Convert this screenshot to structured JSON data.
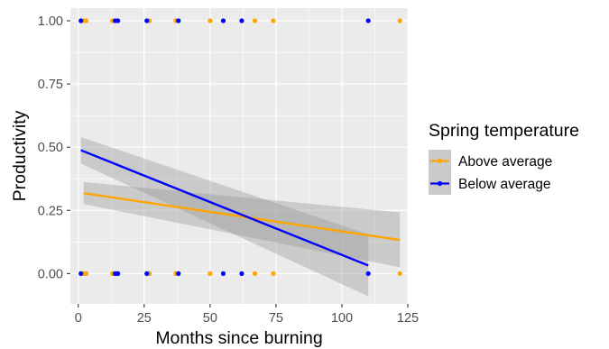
{
  "chart_data": {
    "type": "scatter",
    "title": "",
    "xlabel": "Months since burning",
    "ylabel": "Productivity",
    "xlim": [
      -3,
      125
    ],
    "ylim": [
      -0.12,
      1.05
    ],
    "x_ticks": [
      0,
      25,
      50,
      75,
      100,
      125
    ],
    "y_ticks": [
      0.0,
      0.25,
      0.5,
      0.75,
      1.0
    ],
    "x_tick_labels": [
      "0",
      "25",
      "50",
      "75",
      "100",
      "125"
    ],
    "y_tick_labels": [
      "0.00",
      "0.25",
      "0.50",
      "0.75",
      "1.00"
    ],
    "grid": true,
    "legend": {
      "title": "Spring temperature",
      "position": "right"
    },
    "series": [
      {
        "name": "Above average",
        "color": "#FFA500",
        "points": [
          [
            2,
            1
          ],
          [
            3,
            1
          ],
          [
            13,
            1
          ],
          [
            15,
            1
          ],
          [
            27,
            1
          ],
          [
            37,
            1
          ],
          [
            50,
            1
          ],
          [
            67,
            1
          ],
          [
            74,
            1
          ],
          [
            122,
            1
          ],
          [
            2,
            0
          ],
          [
            3,
            0
          ],
          [
            13,
            0
          ],
          [
            15,
            0
          ],
          [
            27,
            0
          ],
          [
            37,
            0
          ],
          [
            50,
            0
          ],
          [
            67,
            0
          ],
          [
            74,
            0
          ],
          [
            122,
            0
          ]
        ],
        "fit": {
          "x": [
            2,
            122
          ],
          "y": [
            0.318,
            0.133
          ],
          "ci_lower": [
            0.275,
            0.025
          ],
          "ci_upper": [
            0.362,
            0.242
          ]
        }
      },
      {
        "name": "Below average",
        "color": "#0000FF",
        "points": [
          [
            1,
            1
          ],
          [
            14,
            1
          ],
          [
            15,
            1
          ],
          [
            26,
            1
          ],
          [
            38,
            1
          ],
          [
            55,
            1
          ],
          [
            62,
            1
          ],
          [
            110,
            1
          ],
          [
            1,
            0
          ],
          [
            14,
            0
          ],
          [
            15,
            0
          ],
          [
            26,
            0
          ],
          [
            38,
            0
          ],
          [
            55,
            0
          ],
          [
            62,
            0
          ],
          [
            110,
            0
          ]
        ],
        "fit": {
          "x": [
            1,
            110
          ],
          "y": [
            0.488,
            0.032
          ],
          "ci_lower": [
            0.435,
            -0.09
          ],
          "ci_upper": [
            0.54,
            0.155
          ]
        }
      }
    ]
  }
}
